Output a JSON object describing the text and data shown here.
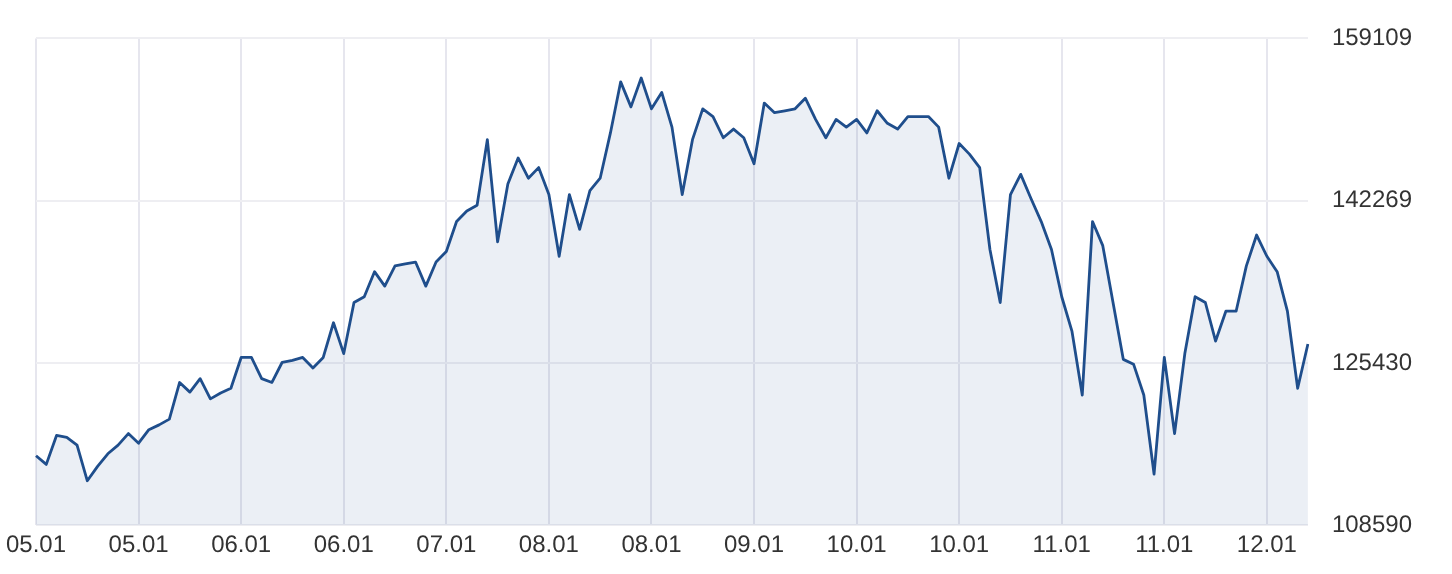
{
  "chart_data": {
    "type": "area",
    "categories": [
      "05.01",
      null,
      null,
      null,
      null,
      null,
      null,
      null,
      null,
      null,
      "05.01",
      null,
      null,
      null,
      null,
      null,
      null,
      null,
      null,
      null,
      "06.01",
      null,
      null,
      null,
      null,
      null,
      null,
      null,
      null,
      null,
      "06.01",
      null,
      null,
      null,
      null,
      null,
      null,
      null,
      null,
      null,
      "07.01",
      null,
      null,
      null,
      null,
      null,
      null,
      null,
      null,
      null,
      "08.01",
      null,
      null,
      null,
      null,
      null,
      null,
      null,
      null,
      null,
      "08.01",
      null,
      null,
      null,
      null,
      null,
      null,
      null,
      null,
      null,
      "09.01",
      null,
      null,
      null,
      null,
      null,
      null,
      null,
      null,
      null,
      "10.01",
      null,
      null,
      null,
      null,
      null,
      null,
      null,
      null,
      null,
      "10.01",
      null,
      null,
      null,
      null,
      null,
      null,
      null,
      null,
      null,
      "11.01",
      null,
      null,
      null,
      null,
      null,
      null,
      null,
      null,
      null,
      "11.01",
      null,
      null,
      null,
      null,
      null,
      null,
      null,
      null,
      null,
      "12.01",
      null,
      null,
      null,
      null
    ],
    "series": [
      {
        "color": "#1f4e8c",
        "values": [
          115800,
          114900,
          117900,
          117700,
          116900,
          113200,
          114700,
          116000,
          116900,
          118100,
          117100,
          118500,
          119000,
          119600,
          123400,
          122400,
          123800,
          121700,
          122300,
          122800,
          126000,
          126000,
          123800,
          123400,
          125500,
          125700,
          126000,
          124900,
          126000,
          129600,
          126400,
          131700,
          132300,
          134900,
          133400,
          135500,
          135700,
          135900,
          133400,
          135900,
          137000,
          140100,
          141200,
          141800,
          148600,
          138000,
          144000,
          146700,
          144600,
          145700,
          142900,
          136500,
          142900,
          139300,
          143300,
          144600,
          149300,
          154600,
          152000,
          155000,
          151800,
          153500,
          149900,
          142900,
          148600,
          151800,
          151000,
          148800,
          149700,
          148800,
          146100,
          152400,
          151400,
          151600,
          151800,
          152900,
          150700,
          148800,
          150700,
          149900,
          150700,
          149300,
          151600,
          150300,
          149700,
          151000,
          151000,
          151000,
          149900,
          144600,
          148200,
          147100,
          145700,
          137200,
          131700,
          142900,
          145000,
          142500,
          140100,
          137200,
          132300,
          128700,
          122100,
          140100,
          137600,
          131700,
          125800,
          125300,
          122100,
          113900,
          126000,
          118100,
          126400,
          132300,
          131700,
          127700,
          130800,
          130800,
          135500,
          138700,
          136500,
          134900,
          130800,
          122800,
          127400
        ]
      }
    ],
    "ylim": [
      108590,
      159109
    ],
    "yticks": [
      108590,
      125430,
      142269,
      159109
    ],
    "grid": true,
    "legend": false
  }
}
